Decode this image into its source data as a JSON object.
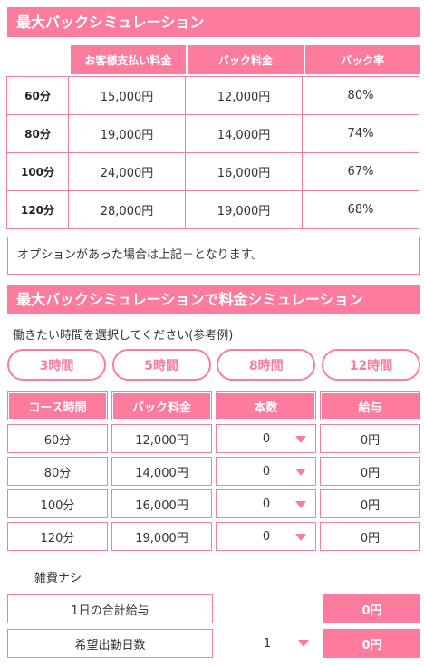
{
  "section1": {
    "title": "最大バックシミュレーション",
    "headers": [
      "お客様支払い料金",
      "バック料金",
      "バック率"
    ],
    "rows": [
      {
        "label": "60分",
        "pay": "15,000円",
        "back": "12,000円",
        "rate": "80%"
      },
      {
        "label": "80分",
        "pay": "19,000円",
        "back": "14,000円",
        "rate": "74%"
      },
      {
        "label": "100分",
        "pay": "24,000円",
        "back": "16,000円",
        "rate": "67%"
      },
      {
        "label": "120分",
        "pay": "28,000円",
        "back": "19,000円",
        "rate": "68%"
      }
    ],
    "note": "オプションがあった場合は上記＋となります。"
  },
  "section2": {
    "title": "最大バックシミュレーションで料金シミュレーション",
    "instruction": "働きたい時間を選択してください(参考例)",
    "buttons": [
      "3時間",
      "5時間",
      "8時間",
      "12時間"
    ],
    "headers": [
      "コース時間",
      "バック料金",
      "本数",
      "給与"
    ],
    "rows": [
      {
        "course": "60分",
        "back": "12,000円",
        "count": "0",
        "salary": "0円"
      },
      {
        "course": "80分",
        "back": "14,000円",
        "count": "0",
        "salary": "0円"
      },
      {
        "course": "100分",
        "back": "16,000円",
        "count": "0",
        "salary": "0円"
      },
      {
        "course": "120分",
        "back": "19,000円",
        "count": "0",
        "salary": "0円"
      }
    ],
    "misc": "雑費ナシ",
    "daily_total_label": "1日の合計給与",
    "daily_total_value": "0円",
    "days_label": "希望出勤日数",
    "days_value": "1",
    "days_total_value": "0円"
  },
  "colors": {
    "accent": "#fd7b9c"
  }
}
